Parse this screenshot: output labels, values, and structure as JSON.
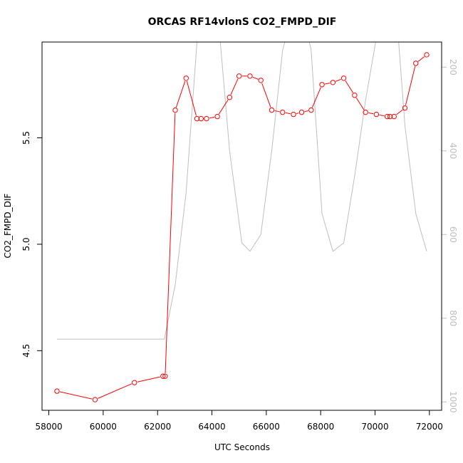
{
  "chart_data": {
    "type": "line",
    "title": "ORCAS RF14vlonS CO2_FMPD_DIF",
    "xlabel": "UTC Seconds",
    "ylabel": "CO2_FMPD_DIF",
    "xlim": [
      57750,
      72450
    ],
    "ylim": [
      4.22,
      5.95
    ],
    "y2lim": [
      1020,
      140
    ],
    "x_ticks": [
      58000,
      60000,
      62000,
      64000,
      66000,
      68000,
      70000,
      72000
    ],
    "y_ticks": [
      4.5,
      5.0,
      5.5
    ],
    "y2_ticks": [
      200,
      400,
      600,
      800,
      1000
    ],
    "grid": false,
    "colors": {
      "primary": "#ff0000",
      "secondary": "#bebebe",
      "axis": "#000000"
    },
    "series": [
      {
        "axis": "left",
        "color": "#ff0000",
        "marker": "circle-open",
        "x": [
          58300,
          59700,
          61150,
          62200,
          62280,
          62650,
          63050,
          63450,
          63600,
          63800,
          64200,
          64650,
          65000,
          65400,
          65800,
          66200,
          66600,
          67000,
          67300,
          67650,
          68050,
          68450,
          68850,
          69250,
          69650,
          70050,
          70450,
          70550,
          70700,
          71100,
          71500,
          71900
        ],
        "y": [
          4.31,
          4.27,
          4.35,
          4.38,
          4.38,
          5.63,
          5.78,
          5.59,
          5.59,
          5.59,
          5.6,
          5.69,
          5.79,
          5.79,
          5.77,
          5.63,
          5.62,
          5.61,
          5.62,
          5.63,
          5.75,
          5.76,
          5.78,
          5.7,
          5.62,
          5.61,
          5.6,
          5.6,
          5.6,
          5.64,
          5.85,
          5.89
        ]
      },
      {
        "axis": "right",
        "color": "#bebebe",
        "marker": "none",
        "x": [
          58300,
          62250,
          62650,
          63050,
          63450,
          63800,
          64150,
          64650,
          65100,
          65400,
          65800,
          66200,
          66600,
          67000,
          67300,
          67650,
          68050,
          68450,
          68850,
          69250,
          69650,
          70050,
          70450,
          70800,
          71100,
          71500,
          71900
        ],
        "y": [
          850,
          850,
          720,
          500,
          140,
          40,
          20,
          400,
          620,
          640,
          600,
          400,
          160,
          60,
          60,
          160,
          550,
          640,
          620,
          460,
          280,
          130,
          40,
          80,
          340,
          550,
          640
        ]
      }
    ]
  }
}
